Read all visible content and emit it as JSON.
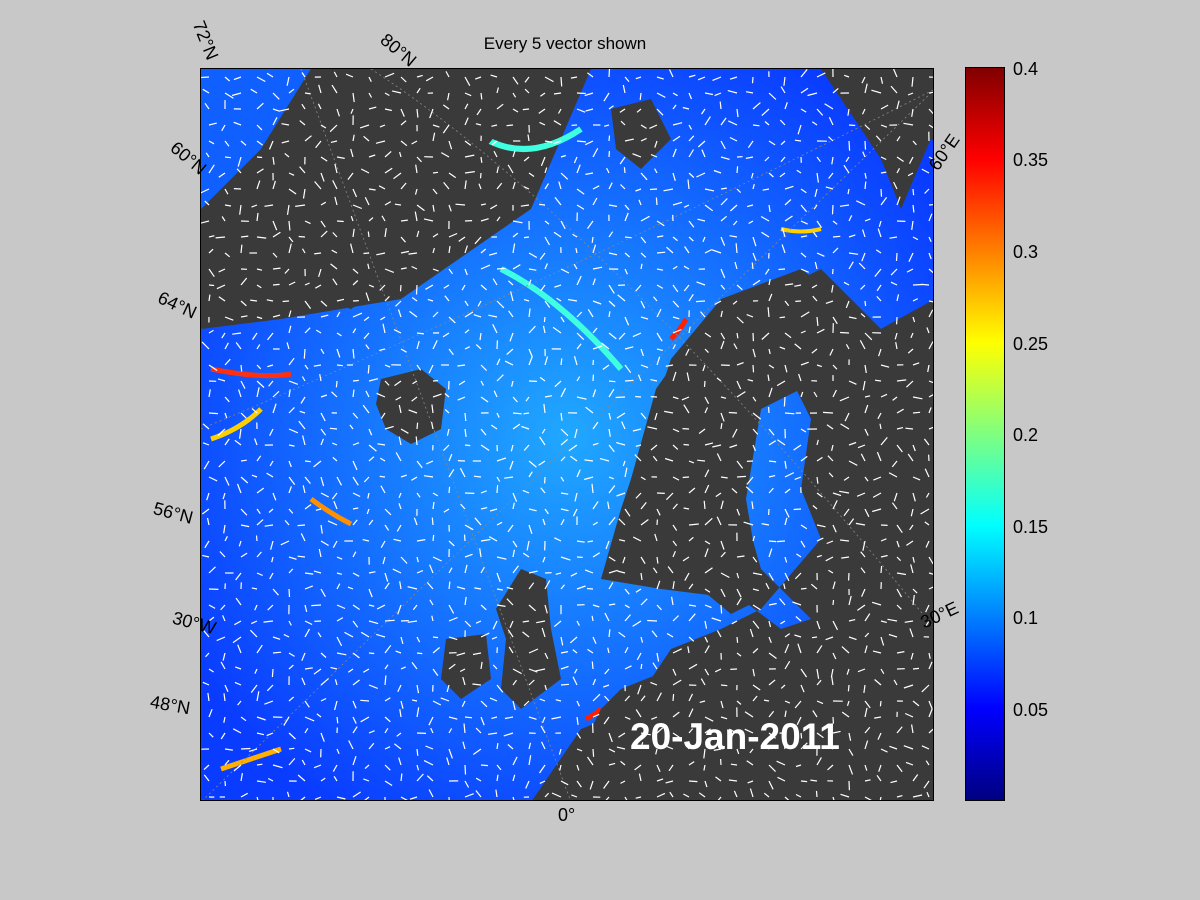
{
  "title": "Every 5 vector shown",
  "date": "20-Jan-2011",
  "lat_labels": [
    "72°N",
    "80°N",
    "60°N",
    "64°N",
    "56°N",
    "48°N"
  ],
  "lon_labels": [
    "30°W",
    "0°",
    "30°E",
    "60°E"
  ],
  "colorbar": {
    "ticks": [
      "0.4",
      "0.35",
      "0.3",
      "0.25",
      "0.2",
      "0.15",
      "0.1",
      "0.05"
    ],
    "min": 0,
    "max": 0.4,
    "colormap": "jet"
  },
  "colors": {
    "land": "#3a3a3a",
    "ocean_low": "#0030ff",
    "ocean_high": "#00ffff",
    "background": "#c8c8c8"
  }
}
